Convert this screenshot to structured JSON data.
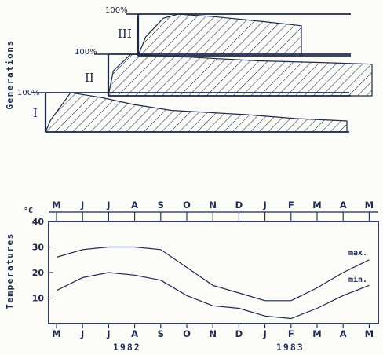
{
  "chart_data": [
    {
      "type": "area",
      "ylabel": "Generations",
      "generations": [
        {
          "label": "I",
          "top_label": "100%",
          "profile_x_month": [
            0,
            0.2,
            1.0,
            2.2,
            3.5,
            5.0,
            8.0,
            10.0,
            12.0
          ],
          "profile_pct": [
            0,
            30,
            100,
            88,
            70,
            55,
            44,
            34,
            28
          ]
        },
        {
          "label": "II",
          "top_label": "100%",
          "profile_x_month": [
            0,
            0.2,
            0.9,
            1.8,
            3.5,
            6.0,
            8.5,
            10.5
          ],
          "profile_pct": [
            0,
            60,
            100,
            97,
            92,
            84,
            80,
            76
          ]
        },
        {
          "label": "III",
          "top_label": "100%",
          "profile_x_month": [
            0,
            0.3,
            1.0,
            1.6,
            3.0,
            5.0,
            6.5
          ],
          "profile_pct": [
            0,
            45,
            90,
            100,
            94,
            82,
            72
          ]
        }
      ]
    },
    {
      "type": "line",
      "ylabel": "Temperatures",
      "unit": "°C",
      "ylim": [
        0,
        40
      ],
      "yticks": [
        10,
        20,
        30,
        40
      ],
      "months_top": [
        "M",
        "J",
        "J",
        "A",
        "S",
        "O",
        "N",
        "D",
        "J",
        "F",
        "M",
        "A",
        "M"
      ],
      "months_bottom": [
        "M",
        "J",
        "J",
        "A",
        "S",
        "O",
        "N",
        "D",
        "J",
        "F",
        "M",
        "A",
        "M"
      ],
      "years": [
        {
          "label": "1982",
          "at_month": 2.5
        },
        {
          "label": "1983",
          "at_month": 9.5
        }
      ],
      "series": [
        {
          "name": "max.",
          "values": [
            26,
            29,
            30,
            30,
            29,
            22,
            15,
            12,
            9,
            9,
            14,
            20,
            25
          ]
        },
        {
          "name": "min.",
          "values": [
            13,
            18,
            20,
            19,
            17,
            11,
            7,
            6,
            3,
            2,
            6,
            11,
            15
          ]
        }
      ]
    }
  ]
}
